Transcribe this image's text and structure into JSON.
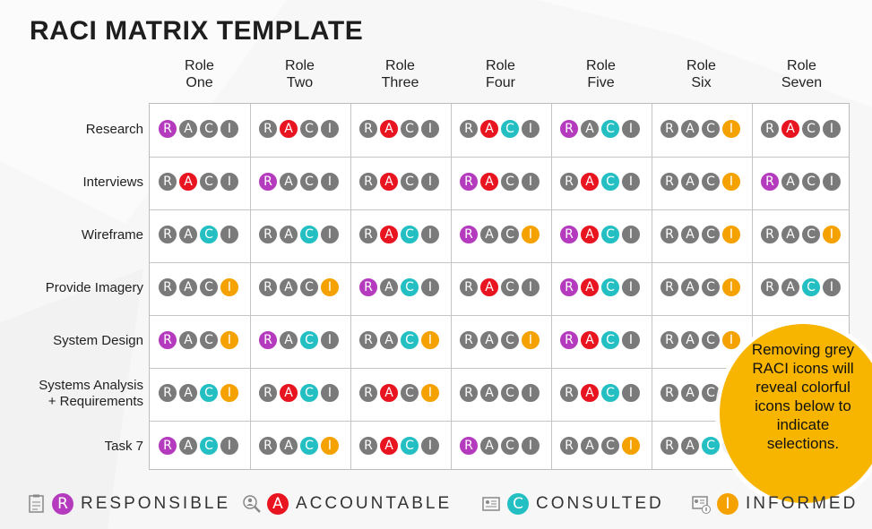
{
  "title": "RACI MATRIX TEMPLATE",
  "roles": [
    {
      "line1": "Role",
      "line2": "One"
    },
    {
      "line1": "Role",
      "line2": "Two"
    },
    {
      "line1": "Role",
      "line2": "Three"
    },
    {
      "line1": "Role",
      "line2": "Four"
    },
    {
      "line1": "Role",
      "line2": "Five"
    },
    {
      "line1": "Role",
      "line2": "Six"
    },
    {
      "line1": "Role",
      "line2": "Seven"
    }
  ],
  "tasks": [
    {
      "label": "Research",
      "cells": [
        "R",
        "A",
        "A",
        "AC",
        "RC",
        "I",
        "A"
      ]
    },
    {
      "label": "Interviews",
      "cells": [
        "A",
        "R",
        "A",
        "RA",
        "AC",
        "I",
        "R"
      ]
    },
    {
      "label": "Wireframe",
      "cells": [
        "C",
        "C",
        "AC",
        "RI",
        "RAC",
        "I",
        "I"
      ]
    },
    {
      "label": "Provide Imagery",
      "cells": [
        "I",
        "I",
        "RC",
        "A",
        "RAC",
        "I",
        "C"
      ]
    },
    {
      "label": "System Design",
      "cells": [
        "RI",
        "RC",
        "CI",
        "I",
        "RAC",
        "I",
        ""
      ]
    },
    {
      "label": "Systems Analysis\n+ Requirements",
      "cells": [
        "CI",
        "AC",
        "AI",
        "",
        "AC",
        "",
        ""
      ]
    },
    {
      "label": "Task 7",
      "cells": [
        "RC",
        "CI",
        "AC",
        "R",
        "I",
        "C",
        ""
      ]
    }
  ],
  "circle_letters": [
    "R",
    "A",
    "C",
    "I"
  ],
  "callout": "Removing grey RACI icons will reveal colorful icons below to indicate selections.",
  "legend": [
    {
      "letter": "R",
      "label": "RESPONSIBLE",
      "icon": "task-list-icon",
      "color": "#b43bbd"
    },
    {
      "letter": "A",
      "label": "ACCOUNTABLE",
      "icon": "magnifier-person-icon",
      "color": "#e8141f"
    },
    {
      "letter": "C",
      "label": "CONSULTED",
      "icon": "id-card-icon",
      "color": "#23bfc2"
    },
    {
      "letter": "I",
      "label": "INFORMED",
      "icon": "id-card-info-icon",
      "color": "#f5a200"
    }
  ],
  "colors": {
    "R": "#b43bbd",
    "A": "#e8141f",
    "C": "#23bfc2",
    "I": "#f5a200",
    "grey": "#7a7a7a"
  }
}
